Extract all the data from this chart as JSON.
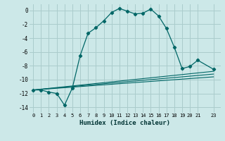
{
  "xlabel": "Humidex (Indice chaleur)",
  "background_color": "#cce8e8",
  "grid_color": "#aacccc",
  "line_color": "#006666",
  "xlim": [
    -0.5,
    23.9
  ],
  "ylim": [
    -14.8,
    0.9
  ],
  "yticks": [
    0,
    -2,
    -4,
    -6,
    -8,
    -10,
    -12,
    -14
  ],
  "xticks": [
    0,
    1,
    2,
    3,
    4,
    5,
    6,
    7,
    8,
    9,
    10,
    11,
    12,
    13,
    14,
    15,
    16,
    17,
    18,
    19,
    20,
    21,
    23
  ],
  "main_x": [
    0,
    1,
    2,
    3,
    4,
    5,
    6,
    7,
    8,
    9,
    10,
    11,
    12,
    13,
    14,
    15,
    16,
    17,
    18,
    19,
    20,
    21,
    23
  ],
  "main_y": [
    -11.5,
    -11.5,
    -11.8,
    -12.0,
    -13.7,
    -11.2,
    -6.5,
    -3.3,
    -2.5,
    -1.5,
    -0.3,
    0.3,
    -0.1,
    -0.5,
    -0.4,
    0.2,
    -0.8,
    -2.6,
    -5.3,
    -8.4,
    -8.1,
    -7.2,
    -8.5
  ],
  "line2_x": [
    0,
    23
  ],
  "line2_y": [
    -11.5,
    -8.8
  ],
  "line3_x": [
    0,
    23
  ],
  "line3_y": [
    -11.5,
    -9.2
  ],
  "line4_x": [
    0,
    23
  ],
  "line4_y": [
    -11.5,
    -9.6
  ]
}
